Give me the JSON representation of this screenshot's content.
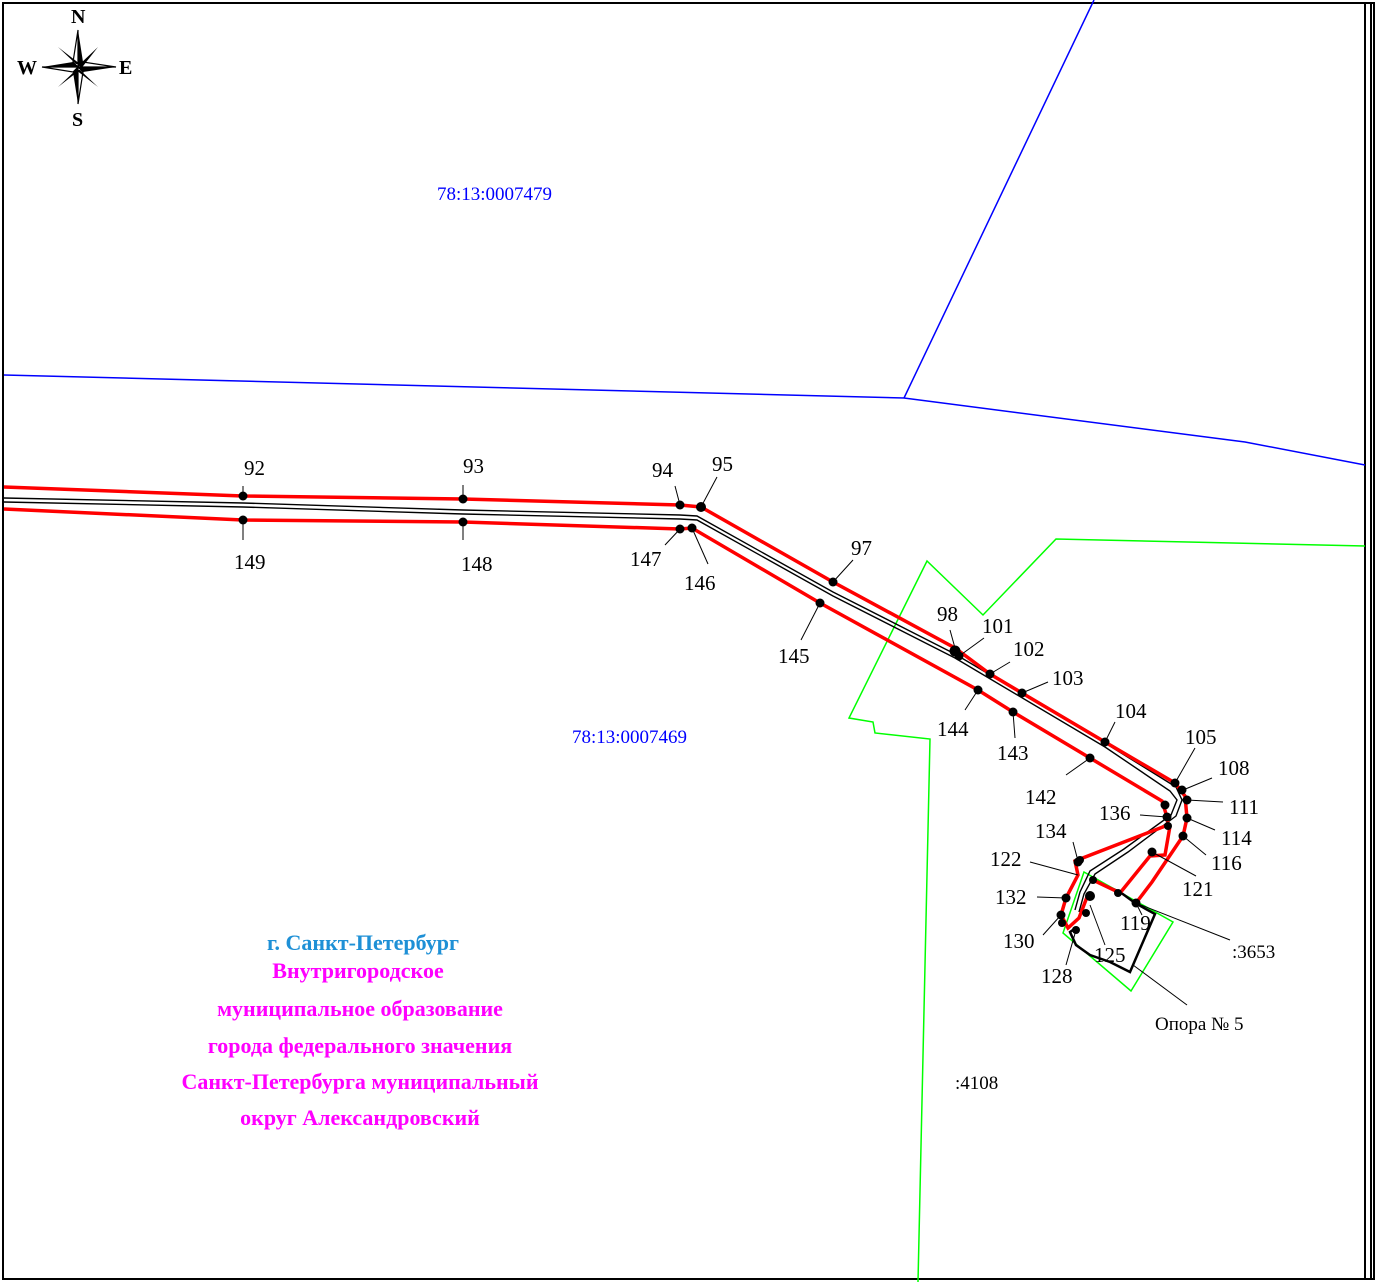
{
  "compass": {
    "north": "N",
    "south": "S",
    "east": "E",
    "west": "W"
  },
  "cadastral_labels": {
    "block_north": "78:13:0007479",
    "block_south": "78:13:0007469"
  },
  "parcel_labels": {
    "parcel_3653": ":3653",
    "parcel_4108": ":4108"
  },
  "support_label": "Опора № 5",
  "region_text": {
    "city": "г. Санкт-Петербург",
    "municipality_lines": [
      "Внутригородское",
      "муниципальное образование",
      "города федерального значения",
      "Санкт-Петербурга муниципальный",
      "округ Александровский"
    ]
  },
  "point_labels": [
    "92",
    "93",
    "94",
    "95",
    "97",
    "98",
    "101",
    "102",
    "103",
    "104",
    "105",
    "108",
    "111",
    "114",
    "116",
    "121",
    "119",
    "125",
    "128",
    "130",
    "132",
    "122",
    "134",
    "136",
    "142",
    "143",
    "144",
    "145",
    "146",
    "147",
    "148",
    "149"
  ],
  "colors": {
    "zone_boundary": "#ff0000",
    "cable_line": "#000000",
    "cadastral_block_boundary": "#0000ff",
    "parcel_boundary": "#00ff00",
    "city_text": "#1e90d6",
    "municipality_text": "#ff00ff"
  }
}
